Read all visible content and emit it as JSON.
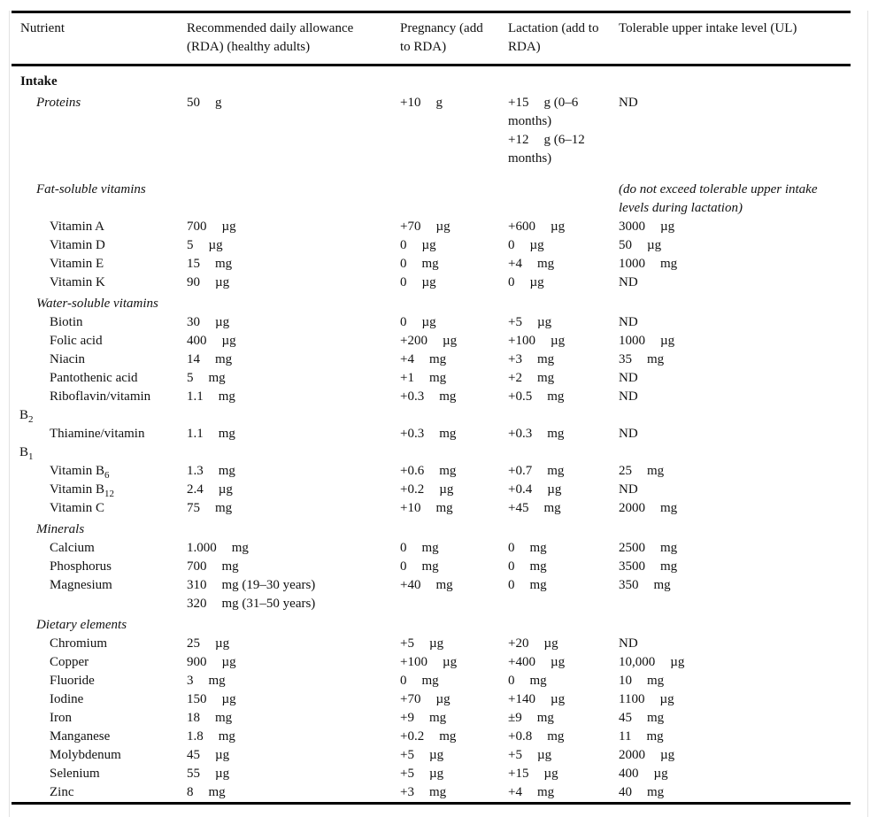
{
  "table": {
    "columns": [
      {
        "label": "Nutrient"
      },
      {
        "label": "Recommended daily allowance (RDA) (healthy adults)"
      },
      {
        "label": "Pregnancy (add to RDA)"
      },
      {
        "label": "Lactation (add to RDA)"
      },
      {
        "label": "Tolerable upper intake level (UL)"
      }
    ],
    "rows": [
      {
        "style": "b",
        "name": [
          {
            "parts": [
              {
                "t": "Intake"
              }
            ]
          }
        ]
      },
      {
        "style": "i",
        "gapAfter": true,
        "name": [
          {
            "parts": [
              {
                "t": "Proteins"
              }
            ]
          }
        ],
        "rda": [
          [
            "50",
            "g"
          ]
        ],
        "preg": [
          [
            "+10",
            "g"
          ]
        ],
        "lact": [
          [
            "+15",
            "g (0–6 months)"
          ],
          [
            "+12",
            "g (6–12 months)"
          ]
        ],
        "ul": [
          [
            "ND",
            ""
          ]
        ]
      },
      {
        "style": "i",
        "name": [
          {
            "parts": [
              {
                "t": "Fat-soluble vitamins"
              }
            ]
          }
        ],
        "ulNote": "(do not exceed tolerable upper intake levels during lactation)"
      },
      {
        "style": "n",
        "name": [
          {
            "parts": [
              {
                "t": "Vitamin A"
              }
            ]
          }
        ],
        "rda": [
          [
            "700",
            "µg"
          ]
        ],
        "preg": [
          [
            "+70",
            "µg"
          ]
        ],
        "lact": [
          [
            "+600",
            "µg"
          ]
        ],
        "ul": [
          [
            "3000",
            "µg"
          ]
        ]
      },
      {
        "style": "n",
        "name": [
          {
            "parts": [
              {
                "t": "Vitamin D"
              }
            ]
          }
        ],
        "rda": [
          [
            "5",
            "µg"
          ]
        ],
        "preg": [
          [
            "0",
            "µg"
          ]
        ],
        "lact": [
          [
            "0",
            "µg"
          ]
        ],
        "ul": [
          [
            "50",
            "µg"
          ]
        ]
      },
      {
        "style": "n",
        "name": [
          {
            "parts": [
              {
                "t": "Vitamin E"
              }
            ]
          }
        ],
        "rda": [
          [
            "15",
            "mg"
          ]
        ],
        "preg": [
          [
            "0",
            "mg"
          ]
        ],
        "lact": [
          [
            "+4",
            "mg"
          ]
        ],
        "ul": [
          [
            "1000",
            "mg"
          ]
        ]
      },
      {
        "style": "n",
        "name": [
          {
            "parts": [
              {
                "t": "Vitamin K"
              }
            ]
          }
        ],
        "rda": [
          [
            "90",
            "µg"
          ]
        ],
        "preg": [
          [
            "0",
            "µg"
          ]
        ],
        "lact": [
          [
            "0",
            "µg"
          ]
        ],
        "ul": [
          [
            "ND",
            ""
          ]
        ]
      },
      {
        "style": "i",
        "name": [
          {
            "parts": [
              {
                "t": "Water-soluble vitamins"
              }
            ]
          }
        ]
      },
      {
        "style": "n",
        "name": [
          {
            "parts": [
              {
                "t": "Biotin"
              }
            ]
          }
        ],
        "rda": [
          [
            "30",
            "µg"
          ]
        ],
        "preg": [
          [
            "0",
            "µg"
          ]
        ],
        "lact": [
          [
            "+5",
            "µg"
          ]
        ],
        "ul": [
          [
            "ND",
            ""
          ]
        ]
      },
      {
        "style": "n",
        "name": [
          {
            "parts": [
              {
                "t": "Folic acid"
              }
            ]
          }
        ],
        "rda": [
          [
            "400",
            "µg"
          ]
        ],
        "preg": [
          [
            "+200",
            "µg"
          ]
        ],
        "lact": [
          [
            "+100",
            "µg"
          ]
        ],
        "ul": [
          [
            "1000",
            "µg"
          ]
        ]
      },
      {
        "style": "n",
        "name": [
          {
            "parts": [
              {
                "t": "Niacin"
              }
            ]
          }
        ],
        "rda": [
          [
            "14",
            "mg"
          ]
        ],
        "preg": [
          [
            "+4",
            "mg"
          ]
        ],
        "lact": [
          [
            "+3",
            "mg"
          ]
        ],
        "ul": [
          [
            "35",
            "mg"
          ]
        ]
      },
      {
        "style": "n",
        "name": [
          {
            "parts": [
              {
                "t": "Pantothenic acid"
              }
            ]
          }
        ],
        "rda": [
          [
            "5",
            "mg"
          ]
        ],
        "preg": [
          [
            "+1",
            "mg"
          ]
        ],
        "lact": [
          [
            "+2",
            "mg"
          ]
        ],
        "ul": [
          [
            "ND",
            ""
          ]
        ]
      },
      {
        "style": "n",
        "name": [
          {
            "parts": [
              {
                "t": "Riboflavin/vitamin"
              }
            ]
          },
          {
            "out": true,
            "parts": [
              {
                "t": "B"
              },
              {
                "s": "2"
              }
            ]
          }
        ],
        "rda": [
          [
            "1.1",
            "mg"
          ]
        ],
        "preg": [
          [
            "+0.3",
            "mg"
          ]
        ],
        "lact": [
          [
            "+0.5",
            "mg"
          ]
        ],
        "ul": [
          [
            "ND",
            ""
          ]
        ]
      },
      {
        "style": "n",
        "name": [
          {
            "parts": [
              {
                "t": "Thiamine/vitamin"
              }
            ]
          },
          {
            "out": true,
            "parts": [
              {
                "t": "B"
              },
              {
                "s": "1"
              }
            ]
          }
        ],
        "rda": [
          [
            "1.1",
            "mg"
          ]
        ],
        "preg": [
          [
            "+0.3",
            "mg"
          ]
        ],
        "lact": [
          [
            "+0.3",
            "mg"
          ]
        ],
        "ul": [
          [
            "ND",
            ""
          ]
        ]
      },
      {
        "style": "n",
        "name": [
          {
            "parts": [
              {
                "t": "Vitamin B"
              },
              {
                "s": "6"
              }
            ]
          }
        ],
        "rda": [
          [
            "1.3",
            "mg"
          ]
        ],
        "preg": [
          [
            "+0.6",
            "mg"
          ]
        ],
        "lact": [
          [
            "+0.7",
            "mg"
          ]
        ],
        "ul": [
          [
            "25",
            "mg"
          ]
        ]
      },
      {
        "style": "n",
        "name": [
          {
            "parts": [
              {
                "t": "Vitamin B"
              },
              {
                "s": "12"
              }
            ]
          }
        ],
        "rda": [
          [
            "2.4",
            "µg"
          ]
        ],
        "preg": [
          [
            "+0.2",
            "µg"
          ]
        ],
        "lact": [
          [
            "+0.4",
            "µg"
          ]
        ],
        "ul": [
          [
            "ND",
            ""
          ]
        ]
      },
      {
        "style": "n",
        "name": [
          {
            "parts": [
              {
                "t": "Vitamin C"
              }
            ]
          }
        ],
        "rda": [
          [
            "75",
            "mg"
          ]
        ],
        "preg": [
          [
            "+10",
            "mg"
          ]
        ],
        "lact": [
          [
            "+45",
            "mg"
          ]
        ],
        "ul": [
          [
            "2000",
            "mg"
          ]
        ]
      },
      {
        "style": "i",
        "name": [
          {
            "parts": [
              {
                "t": "Minerals"
              }
            ]
          }
        ]
      },
      {
        "style": "n",
        "name": [
          {
            "parts": [
              {
                "t": "Calcium"
              }
            ]
          }
        ],
        "rda": [
          [
            "1.000",
            "mg"
          ]
        ],
        "preg": [
          [
            "0",
            "mg"
          ]
        ],
        "lact": [
          [
            "0",
            "mg"
          ]
        ],
        "ul": [
          [
            "2500",
            "mg"
          ]
        ]
      },
      {
        "style": "n",
        "name": [
          {
            "parts": [
              {
                "t": "Phosphorus"
              }
            ]
          }
        ],
        "rda": [
          [
            "700",
            "mg"
          ]
        ],
        "preg": [
          [
            "0",
            "mg"
          ]
        ],
        "lact": [
          [
            "0",
            "mg"
          ]
        ],
        "ul": [
          [
            "3500",
            "mg"
          ]
        ]
      },
      {
        "style": "n",
        "name": [
          {
            "parts": [
              {
                "t": "Magnesium"
              }
            ]
          }
        ],
        "rda": [
          [
            "310",
            "mg (19–30 years)"
          ],
          [
            "320",
            "mg (31–50 years)"
          ]
        ],
        "preg": [
          [
            "+40",
            "mg"
          ]
        ],
        "lact": [
          [
            "0",
            "mg"
          ]
        ],
        "ul": [
          [
            "350",
            "mg"
          ]
        ]
      },
      {
        "style": "i",
        "name": [
          {
            "parts": [
              {
                "t": "Dietary elements"
              }
            ]
          }
        ]
      },
      {
        "style": "n",
        "name": [
          {
            "parts": [
              {
                "t": "Chromium"
              }
            ]
          }
        ],
        "rda": [
          [
            "25",
            "µg"
          ]
        ],
        "preg": [
          [
            "+5",
            "µg"
          ]
        ],
        "lact": [
          [
            "+20",
            "µg"
          ]
        ],
        "ul": [
          [
            "ND",
            ""
          ]
        ]
      },
      {
        "style": "n",
        "name": [
          {
            "parts": [
              {
                "t": "Copper"
              }
            ]
          }
        ],
        "rda": [
          [
            "900",
            "µg"
          ]
        ],
        "preg": [
          [
            "+100",
            "µg"
          ]
        ],
        "lact": [
          [
            "+400",
            "µg"
          ]
        ],
        "ul": [
          [
            "10,000",
            "µg"
          ]
        ]
      },
      {
        "style": "n",
        "name": [
          {
            "parts": [
              {
                "t": "Fluoride"
              }
            ]
          }
        ],
        "rda": [
          [
            "3",
            "mg"
          ]
        ],
        "preg": [
          [
            "0",
            "mg"
          ]
        ],
        "lact": [
          [
            "0",
            "mg"
          ]
        ],
        "ul": [
          [
            "10",
            "mg"
          ]
        ]
      },
      {
        "style": "n",
        "name": [
          {
            "parts": [
              {
                "t": "Iodine"
              }
            ]
          }
        ],
        "rda": [
          [
            "150",
            "µg"
          ]
        ],
        "preg": [
          [
            "+70",
            "µg"
          ]
        ],
        "lact": [
          [
            "+140",
            "µg"
          ]
        ],
        "ul": [
          [
            "1100",
            "µg"
          ]
        ]
      },
      {
        "style": "n",
        "name": [
          {
            "parts": [
              {
                "t": "Iron"
              }
            ]
          }
        ],
        "rda": [
          [
            "18",
            "mg"
          ]
        ],
        "preg": [
          [
            "+9",
            "mg"
          ]
        ],
        "lact": [
          [
            "±9",
            "mg"
          ]
        ],
        "ul": [
          [
            "45",
            "mg"
          ]
        ]
      },
      {
        "style": "n",
        "name": [
          {
            "parts": [
              {
                "t": "Manganese"
              }
            ]
          }
        ],
        "rda": [
          [
            "1.8",
            "mg"
          ]
        ],
        "preg": [
          [
            "+0.2",
            "mg"
          ]
        ],
        "lact": [
          [
            "+0.8",
            "mg"
          ]
        ],
        "ul": [
          [
            "11",
            "mg"
          ]
        ]
      },
      {
        "style": "n",
        "name": [
          {
            "parts": [
              {
                "t": "Molybdenum"
              }
            ]
          }
        ],
        "rda": [
          [
            "45",
            "µg"
          ]
        ],
        "preg": [
          [
            "+5",
            "µg"
          ]
        ],
        "lact": [
          [
            "+5",
            "µg"
          ]
        ],
        "ul": [
          [
            "2000",
            "µg"
          ]
        ]
      },
      {
        "style": "n",
        "name": [
          {
            "parts": [
              {
                "t": "Selenium"
              }
            ]
          }
        ],
        "rda": [
          [
            "55",
            "µg"
          ]
        ],
        "preg": [
          [
            "+5",
            "µg"
          ]
        ],
        "lact": [
          [
            "+15",
            "µg"
          ]
        ],
        "ul": [
          [
            "400",
            "µg"
          ]
        ]
      },
      {
        "style": "n",
        "name": [
          {
            "parts": [
              {
                "t": "Zinc"
              }
            ]
          }
        ],
        "rda": [
          [
            "8",
            "mg"
          ]
        ],
        "preg": [
          [
            "+3",
            "mg"
          ]
        ],
        "lact": [
          [
            "+4",
            "mg"
          ]
        ],
        "ul": [
          [
            "40",
            "mg"
          ]
        ]
      }
    ]
  }
}
